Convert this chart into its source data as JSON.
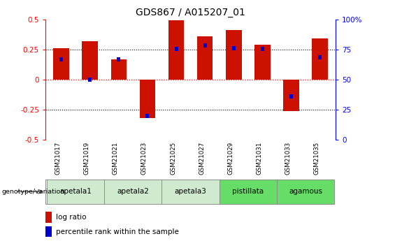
{
  "title": "GDS867 / A015207_01",
  "samples": [
    "GSM21017",
    "GSM21019",
    "GSM21021",
    "GSM21023",
    "GSM21025",
    "GSM21027",
    "GSM21029",
    "GSM21031",
    "GSM21033",
    "GSM21035"
  ],
  "log_ratio": [
    0.26,
    0.32,
    0.17,
    -0.32,
    0.49,
    0.36,
    0.41,
    0.29,
    -0.26,
    0.34
  ],
  "percentile_rank_val": [
    0.165,
    0.0,
    0.17,
    -0.3,
    0.255,
    0.285,
    0.26,
    0.255,
    -0.14,
    0.185
  ],
  "bar_color_red": "#cc1100",
  "bar_color_blue": "#0000cc",
  "groups": [
    {
      "label": "apetala1",
      "start": 0,
      "end": 2,
      "color": "#d0ead0"
    },
    {
      "label": "apetala2",
      "start": 2,
      "end": 4,
      "color": "#d0ead0"
    },
    {
      "label": "apetala3",
      "start": 4,
      "end": 6,
      "color": "#d0ead0"
    },
    {
      "label": "pistillata",
      "start": 6,
      "end": 8,
      "color": "#66dd66"
    },
    {
      "label": "agamous",
      "start": 8,
      "end": 10,
      "color": "#66dd66"
    }
  ],
  "ylim": [
    -0.5,
    0.5
  ],
  "yticks_left": [
    -0.5,
    -0.25,
    0,
    0.25,
    0.5
  ],
  "yticks_right": [
    0,
    25,
    50,
    75,
    100
  ],
  "title_fontsize": 10,
  "tick_fontsize": 7.5,
  "genotype_label": "genotype/variation",
  "legend_items": [
    "log ratio",
    "percentile rank within the sample"
  ]
}
